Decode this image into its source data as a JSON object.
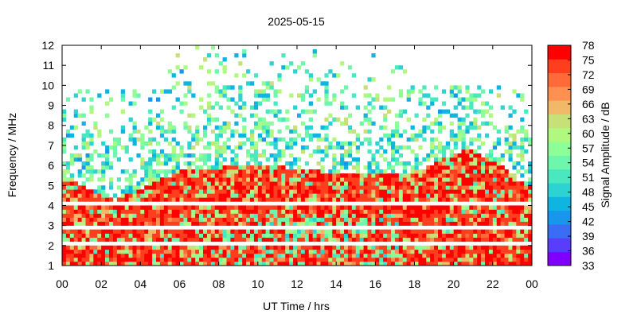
{
  "chart_data": {
    "type": "heatmap",
    "title": "2025-05-15",
    "xlabel": "UT Time / hrs",
    "ylabel": "Frequency / MHz",
    "colorbar_label": "Signal Amplitude / dB",
    "xlim": [
      0,
      24
    ],
    "ylim": [
      1,
      12
    ],
    "x_ticks": [
      "00",
      "02",
      "04",
      "06",
      "08",
      "10",
      "12",
      "14",
      "16",
      "18",
      "20",
      "22",
      "00"
    ],
    "y_ticks": [
      "1",
      "2",
      "3",
      "4",
      "5",
      "6",
      "7",
      "8",
      "9",
      "10",
      "11",
      "12"
    ],
    "colorbar_range": [
      33,
      78
    ],
    "colorbar_ticks": [
      "33",
      "36",
      "39",
      "42",
      "45",
      "48",
      "51",
      "54",
      "57",
      "60",
      "63",
      "66",
      "69",
      "72",
      "75",
      "78"
    ],
    "colormap": [
      "#8000ff",
      "#5a3cfb",
      "#3a6cf4",
      "#1896eb",
      "#10b4e0",
      "#2cd3d2",
      "#4ae8c0",
      "#6ef7ac",
      "#8efe96",
      "#b0f880",
      "#c8e078",
      "#f0b868",
      "#ff9050",
      "#ff6a38",
      "#ff3e1e",
      "#ff0000"
    ],
    "background_level_db": 55,
    "saturated_region_upper_edge_mhz": {
      "hours": [
        0,
        1,
        2,
        2.7,
        3.5,
        4.5,
        5.3,
        6,
        8,
        10,
        12,
        14,
        16,
        17.5,
        18,
        19,
        20,
        20.7,
        21.5,
        22.5,
        23.5,
        24
      ],
      "freq_mhz": [
        5.6,
        5.0,
        4.5,
        4.3,
        4.6,
        5.1,
        5.4,
        5.7,
        5.9,
        6.05,
        5.85,
        5.6,
        5.6,
        5.6,
        5.7,
        6.1,
        6.6,
        6.8,
        6.4,
        5.9,
        5.1,
        4.9
      ]
    },
    "data_ceiling_mhz": {
      "segments": [
        {
          "from_hour": 0,
          "to_hour": 5.5,
          "freq_mhz": 10
        },
        {
          "from_hour": 5.5,
          "to_hour": 18.4,
          "freq_mhz": 12
        },
        {
          "from_hour": 18.4,
          "to_hour": 24,
          "freq_mhz": 10
        }
      ]
    },
    "horizontal_gaps_mhz": [
      4.1,
      2.95,
      2.1
    ]
  }
}
